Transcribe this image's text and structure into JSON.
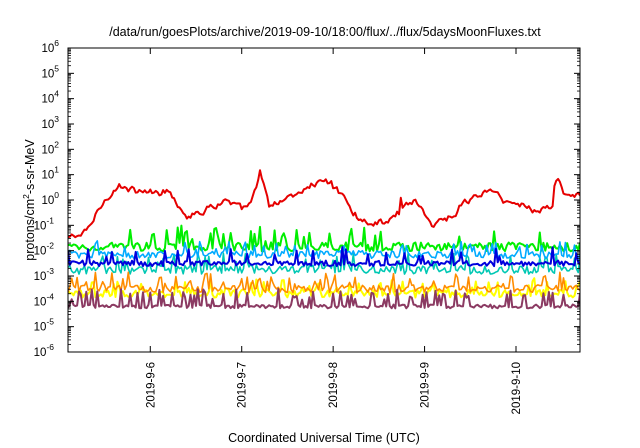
{
  "chart_data": {
    "type": "line",
    "title": "/data/run/goesPlots/archive/2019-09-10/18:00/flux/../flux/5daysMoonFluxes.txt",
    "xlabel": "Coordinated Universal Time (UTC)",
    "ylabel": {
      "pre": "protons/cm",
      "sup": "2",
      "post": "-s-sr-MeV"
    },
    "yscale": "log",
    "ylim_exp": [
      -6,
      6
    ],
    "y_ticks": [
      {
        "base": "10",
        "exp": "6"
      },
      {
        "base": "10",
        "exp": "5"
      },
      {
        "base": "10",
        "exp": "4"
      },
      {
        "base": "10",
        "exp": "3"
      },
      {
        "base": "10",
        "exp": "2"
      },
      {
        "base": "10",
        "exp": "1"
      },
      {
        "base": "10",
        "exp": "0"
      },
      {
        "base": "10",
        "exp": "-1"
      },
      {
        "base": "10",
        "exp": "-2"
      },
      {
        "base": "10",
        "exp": "-3"
      },
      {
        "base": "10",
        "exp": "-4"
      },
      {
        "base": "10",
        "exp": "-5"
      },
      {
        "base": "10",
        "exp": "-6"
      }
    ],
    "xlim_days": [
      0,
      5.6
    ],
    "x_ticks": [
      {
        "label": "2019-9-6",
        "day": 0.9
      },
      {
        "label": "2019-9-7",
        "day": 1.9
      },
      {
        "label": "2019-9-8",
        "day": 2.9
      },
      {
        "label": "2019-9-9",
        "day": 3.9
      },
      {
        "label": "2019-9-10",
        "day": 4.9
      }
    ],
    "grid": false,
    "legend": "none",
    "series": [
      {
        "color": "#e60000",
        "width": 2,
        "base": 0.2,
        "amp": 0.55,
        "freq": 3.5,
        "noise": 0.25,
        "spike_prob": 0.03,
        "spike_amp": 0.6,
        "style": "smooth",
        "anchors": [
          [
            0,
            -1.5
          ],
          [
            0.2,
            -1.3
          ],
          [
            0.35,
            -0.3
          ],
          [
            0.5,
            0.5
          ],
          [
            0.8,
            0.3
          ],
          [
            1.0,
            0.3
          ],
          [
            1.1,
            0.4
          ],
          [
            1.3,
            -0.6
          ],
          [
            1.5,
            -0.4
          ],
          [
            1.7,
            0.0
          ],
          [
            1.9,
            -0.4
          ],
          [
            2.0,
            -0.2
          ],
          [
            2.1,
            1.1
          ],
          [
            2.2,
            -0.3
          ],
          [
            2.5,
            0.3
          ],
          [
            2.8,
            0.8
          ],
          [
            3.0,
            0.2
          ],
          [
            3.2,
            -0.8
          ],
          [
            3.5,
            -0.9
          ],
          [
            3.7,
            -0.2
          ],
          [
            3.8,
            0.0
          ],
          [
            4.0,
            -1.0
          ],
          [
            4.2,
            -0.6
          ],
          [
            4.3,
            -0.2
          ],
          [
            4.6,
            0.4
          ],
          [
            4.8,
            -0.1
          ],
          [
            5.0,
            -0.2
          ],
          [
            5.1,
            -0.4
          ],
          [
            5.3,
            -0.2
          ],
          [
            5.35,
            0.9
          ],
          [
            5.45,
            0.1
          ],
          [
            5.6,
            0.2
          ]
        ]
      },
      {
        "color": "#00ee00",
        "width": 2,
        "base": -1.85,
        "amp": 0.0,
        "freq": 10,
        "noise": 0.35,
        "spike_prob": 0.12,
        "spike_amp": 0.7,
        "style": "spiky"
      },
      {
        "color": "#00c8b4",
        "width": 1.6,
        "base": -2.75,
        "amp": 0.0,
        "freq": 11,
        "noise": 0.35,
        "spike_prob": 0.14,
        "spike_amp": 0.6,
        "style": "spiky"
      },
      {
        "color": "#00aaff",
        "width": 1.6,
        "base": -2.15,
        "amp": 0.0,
        "freq": 13,
        "noise": 0.3,
        "spike_prob": 0.14,
        "spike_amp": 0.5,
        "style": "spiky"
      },
      {
        "color": "#0000dd",
        "width": 2,
        "base": -2.5,
        "amp": 0.0,
        "freq": 12,
        "noise": 0.22,
        "spike_prob": 0.12,
        "spike_amp": 0.6,
        "style": "spiky"
      },
      {
        "color": "#ffff00",
        "width": 2,
        "base": -3.7,
        "amp": 0.0,
        "freq": 14,
        "noise": 0.3,
        "spike_prob": 0.2,
        "spike_amp": 0.55,
        "style": "spiky"
      },
      {
        "color": "#ff8c00",
        "width": 1.6,
        "base": -3.5,
        "amp": 0.0,
        "freq": 14,
        "noise": 0.3,
        "spike_prob": 0.2,
        "spike_amp": 0.55,
        "style": "spiky"
      },
      {
        "color": "#8b3a62",
        "width": 2,
        "base": -4.2,
        "amp": 0.0,
        "freq": 14,
        "noise": 0.15,
        "spike_prob": 0.22,
        "spike_amp": 0.65,
        "style": "spiky"
      }
    ]
  }
}
